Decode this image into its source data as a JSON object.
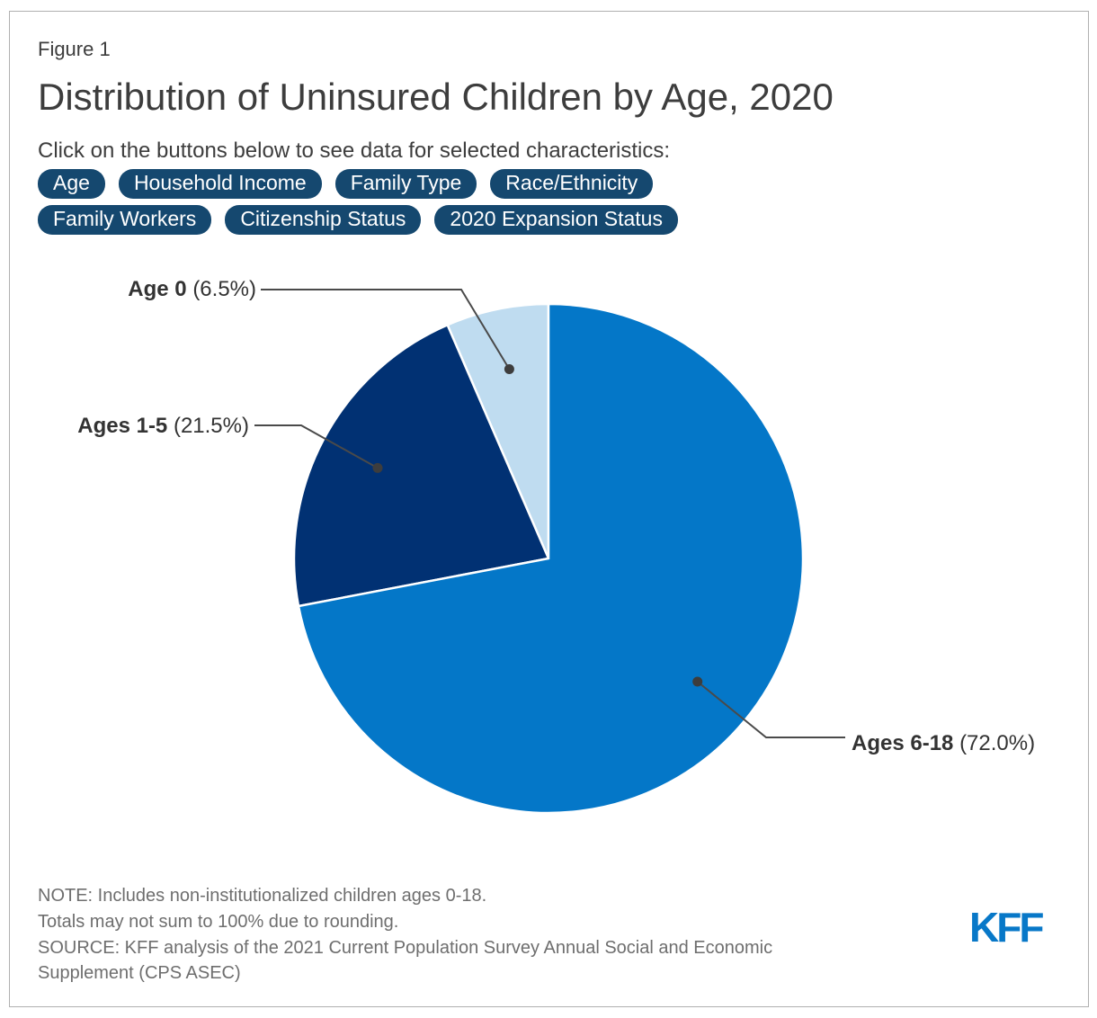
{
  "header": {
    "figure_label": "Figure 1",
    "title": "Distribution of Uninsured Children by Age, 2020",
    "subtitle": "Click on the buttons below to see data for selected characteristics:"
  },
  "nav_buttons": {
    "rows": [
      [
        "Age",
        "Household Income",
        "Family Type",
        "Race/Ethnicity"
      ],
      [
        "Family Workers",
        "Citizenship Status",
        "2020 Expansion Status"
      ]
    ],
    "bg_color": "#15486f",
    "text_color": "#ffffff"
  },
  "chart_data": {
    "type": "pie",
    "title": "Distribution of Uninsured Children by Age, 2020",
    "slices": [
      {
        "label": "Age 0",
        "value": 6.5,
        "display": "(6.5%)",
        "color": "#bfdcf0"
      },
      {
        "label": "Ages 1-5",
        "value": 21.5,
        "display": "(21.5%)",
        "color": "#013173"
      },
      {
        "label": "Ages 6-18",
        "value": 72.0,
        "display": "(72.0%)",
        "color": "#0477c8"
      }
    ],
    "layout": {
      "direction": "counterclockwise_from_top",
      "slice_border_color": "#ffffff",
      "leader_line_color": "#4a4a4a",
      "leader_dot_color": "#3d3d3d",
      "legend": "none",
      "labels": "external_with_leader_lines"
    }
  },
  "footer": {
    "note_lines": [
      "NOTE: Includes non-institutionalized children ages 0-18.",
      "Totals may not sum to 100% due to rounding.",
      "SOURCE: KFF analysis of the 2021 Current Population Survey Annual Social and Economic Supplement (CPS ASEC)"
    ],
    "logo_text": "KFF",
    "logo_color": "#0878c8"
  },
  "colors": {
    "page_background": "#ffffff",
    "frame_border": "#b0b0b0",
    "heading_text": "#3d3d3d",
    "note_text": "#6e6e6e"
  }
}
